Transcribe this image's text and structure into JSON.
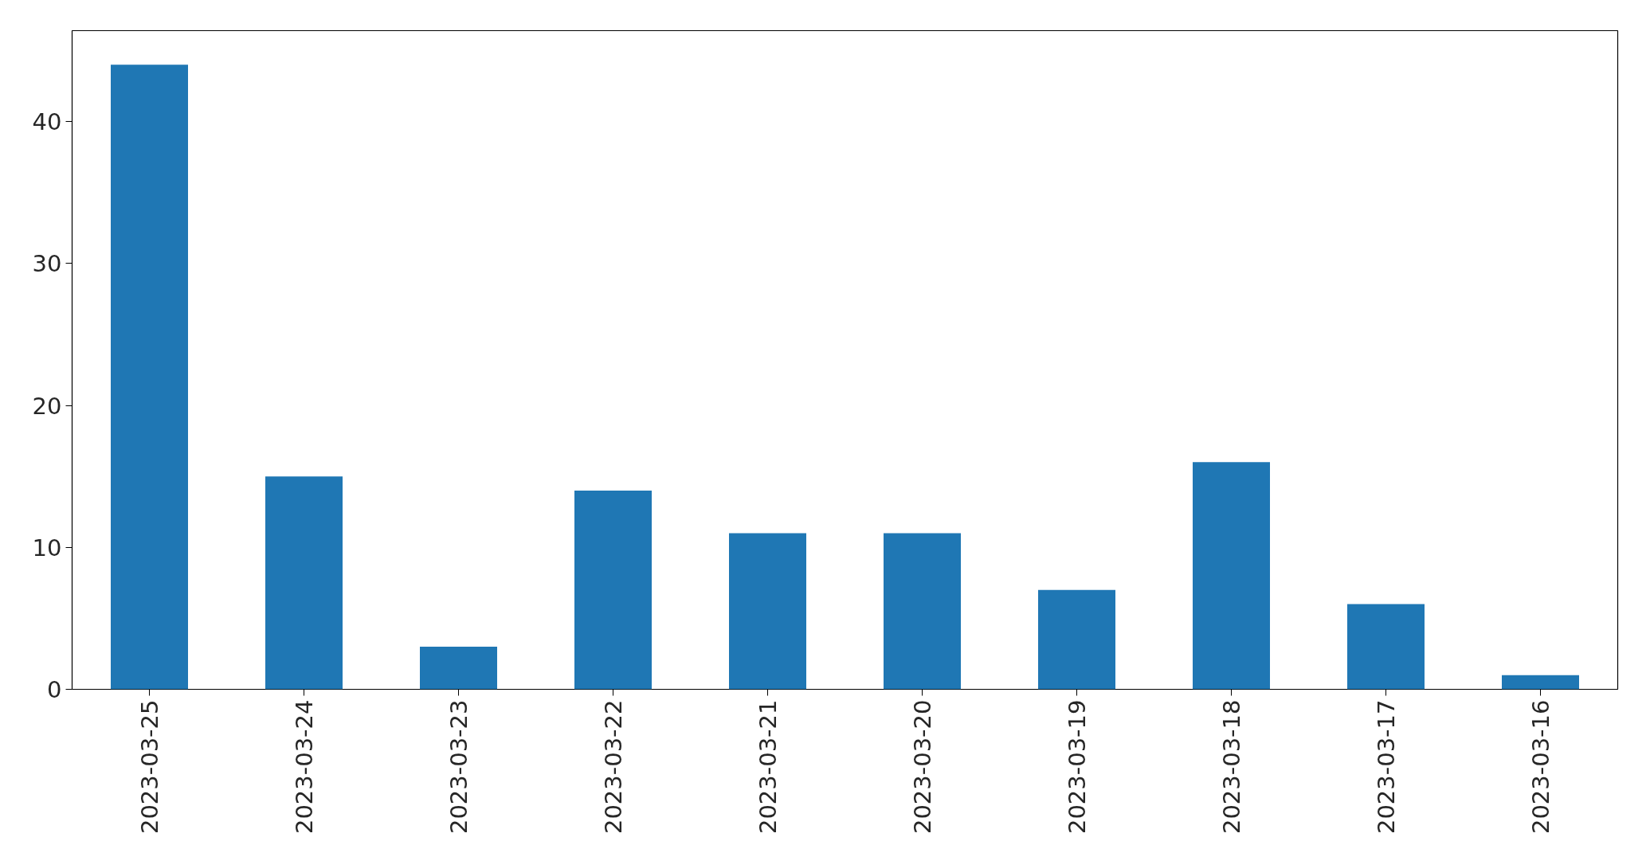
{
  "chart_data": {
    "type": "bar",
    "categories": [
      "2023-03-25",
      "2023-03-24",
      "2023-03-23",
      "2023-03-22",
      "2023-03-21",
      "2023-03-20",
      "2023-03-19",
      "2023-03-18",
      "2023-03-17",
      "2023-03-16"
    ],
    "values": [
      44,
      15,
      3,
      14,
      11,
      11,
      7,
      16,
      6,
      1
    ],
    "color": "#1f77b4",
    "ylim": [
      0,
      46.4
    ],
    "yticks": [
      0,
      10,
      20,
      30,
      40
    ],
    "grid": false
  }
}
